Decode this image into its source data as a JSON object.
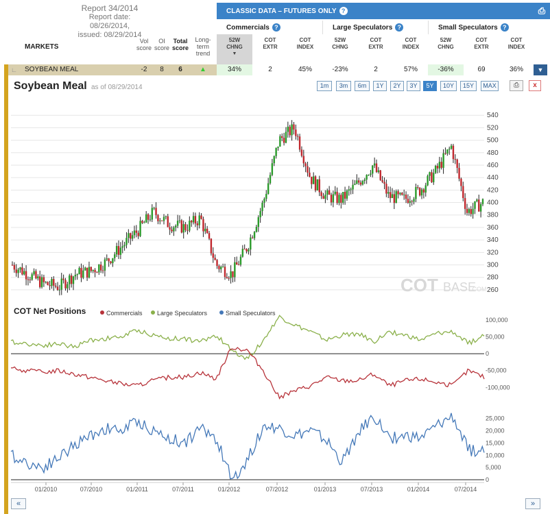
{
  "report": {
    "title": "Report 34/2014",
    "date_line": "Report date: 08/26/2014,",
    "issued_line": "issued: 08/29/2014"
  },
  "table_header": {
    "markets": "MARKETS",
    "vol_score": [
      "Vol",
      "score"
    ],
    "oi_score": [
      "OI",
      "score"
    ],
    "total_score": [
      "Total",
      "score"
    ],
    "long_term": [
      "Long-",
      "term",
      "trend"
    ]
  },
  "classic_bar": {
    "title": "CLASSIC DATA – FUTURES ONLY",
    "help": "?"
  },
  "groups": [
    "Commercials",
    "Large Speculators",
    "Small Speculators"
  ],
  "subcols": [
    [
      "52W",
      "CHNG"
    ],
    [
      "COT",
      "EXTR"
    ],
    [
      "COT",
      "INDEX"
    ],
    [
      "52W",
      "CHNG"
    ],
    [
      "COT",
      "EXTR"
    ],
    [
      "COT",
      "INDEX"
    ],
    [
      "52W",
      "CHNG"
    ],
    [
      "COT",
      "EXTR"
    ],
    [
      "COT",
      "INDEX"
    ]
  ],
  "row": {
    "name": "SOYBEAN MEAL",
    "vol": "-2",
    "oi": "8",
    "total": "6",
    "values": [
      "34%",
      "2",
      "45%",
      "-23%",
      "2",
      "57%",
      "-36%",
      "69",
      "36%"
    ]
  },
  "chart": {
    "title": "Soybean Meal",
    "asof": "as of 08/29/2014",
    "ranges": [
      "1m",
      "3m",
      "6m",
      "1Y",
      "2Y",
      "3Y",
      "5Y",
      "10Y",
      "15Y",
      "MAX"
    ],
    "selected_range": "5Y",
    "watermark_a": "COT",
    "watermark_b": "BASE",
    "watermark_c": ".COM",
    "cot_title": "COT Net Positions",
    "legend": [
      "Commercials",
      "Large Speculators",
      "Small Speculators"
    ],
    "colors": {
      "up": "#2a9a2a",
      "down": "#c0272d",
      "commercials": "#b7333a",
      "large": "#8ab04a",
      "small": "#4478b8",
      "accent": "#3b83c8",
      "gold": "#d4a41f"
    }
  },
  "chart_data": [
    {
      "type": "candlestick",
      "title": "Soybean Meal",
      "ylim": [
        250,
        560
      ],
      "yticks": [
        260,
        280,
        300,
        320,
        340,
        360,
        380,
        400,
        420,
        440,
        460,
        480,
        500,
        520,
        540
      ],
      "xticks": [
        "01/2010",
        "07/2010",
        "01/2011",
        "07/2011",
        "01/2012",
        "07/2012",
        "01/2013",
        "07/2013",
        "01/2014",
        "07/2014"
      ],
      "x": [
        "2009-09",
        "2009-11",
        "2010-01",
        "2010-03",
        "2010-05",
        "2010-07",
        "2010-09",
        "2010-11",
        "2011-01",
        "2011-03",
        "2011-05",
        "2011-07",
        "2011-09",
        "2011-11",
        "2012-01",
        "2012-03",
        "2012-05",
        "2012-07",
        "2012-09",
        "2012-11",
        "2013-01",
        "2013-03",
        "2013-05",
        "2013-07",
        "2013-09",
        "2013-11",
        "2014-01",
        "2014-03",
        "2014-05",
        "2014-07",
        "2014-08"
      ],
      "close": [
        300,
        285,
        270,
        265,
        285,
        290,
        305,
        330,
        355,
        385,
        365,
        360,
        375,
        300,
        285,
        330,
        400,
        500,
        520,
        440,
        410,
        405,
        430,
        460,
        410,
        405,
        420,
        450,
        490,
        385,
        400
      ]
    },
    {
      "type": "line",
      "title": "COT Net Positions",
      "series": [
        {
          "name": "Large Speculators",
          "values": [
            35000,
            30000,
            25000,
            30000,
            20000,
            40000,
            45000,
            50000,
            70000,
            55000,
            45000,
            45000,
            35000,
            55000,
            10000,
            -15000,
            40000,
            110000,
            85000,
            65000,
            40000,
            55000,
            60000,
            35000,
            65000,
            55000,
            40000,
            60000,
            65000,
            30000,
            55000
          ]
        },
        {
          "name": "Commercials",
          "values": [
            -45000,
            -50000,
            -55000,
            -50000,
            -60000,
            -70000,
            -80000,
            -90000,
            -95000,
            -80000,
            -70000,
            -70000,
            -55000,
            -75000,
            20000,
            10000,
            -50000,
            -130000,
            -110000,
            -95000,
            -70000,
            -80000,
            -80000,
            -60000,
            -95000,
            -80000,
            -75000,
            -85000,
            -95000,
            -50000,
            -70000
          ]
        },
        {
          "name": "Small Speculators",
          "values": [
            10000,
            7000,
            5000,
            9000,
            14000,
            18000,
            21000,
            20000,
            24000,
            20000,
            17000,
            15000,
            21000,
            17000,
            0,
            8000,
            22000,
            21000,
            18000,
            20000,
            16000,
            7000,
            19000,
            26000,
            17000,
            18000,
            17000,
            22000,
            26000,
            12000,
            12000
          ]
        }
      ],
      "ylim_net": [
        -130000,
        110000
      ],
      "yticks_net": [
        "100,000",
        "50,000",
        "0",
        "-50,000",
        "-100,000"
      ],
      "yticks_small": [
        "25,000",
        "20,000",
        "15,000",
        "10,000",
        "5,000",
        "0"
      ]
    }
  ]
}
